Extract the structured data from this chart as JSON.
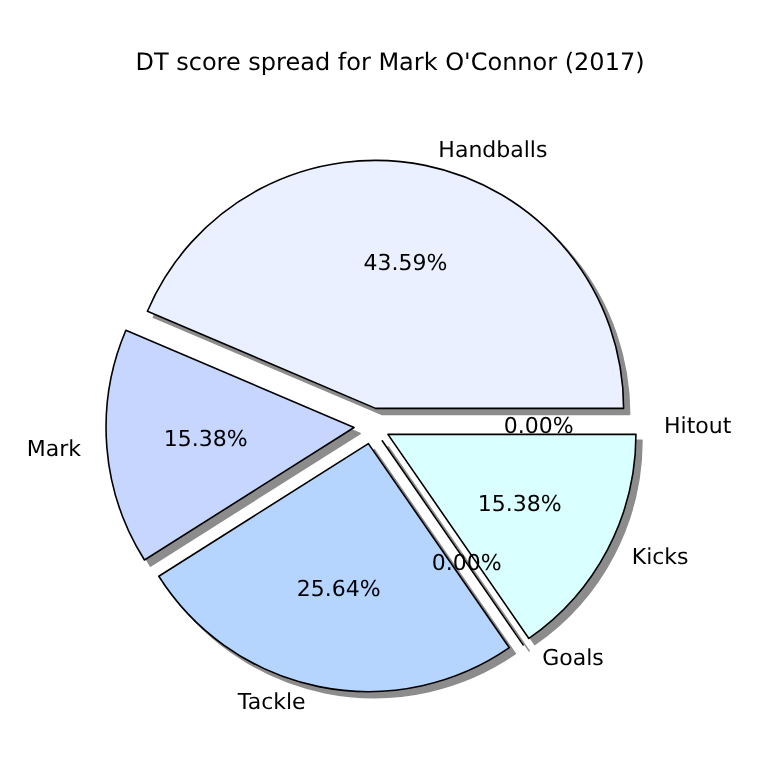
{
  "chart_data": {
    "type": "pie",
    "title": "DT score spread for Mark O'Connor (2017)",
    "categories": [
      "Handballs",
      "Mark",
      "Tackle",
      "Goals",
      "Kicks",
      "Hitout"
    ],
    "values": [
      43.59,
      15.38,
      25.64,
      0.0,
      15.38,
      0.0
    ],
    "colors": [
      "#eaf0ff",
      "#c6d6ff",
      "#b5d5ff",
      "#c0e8ff",
      "#d9ffff",
      "#e6ffff"
    ],
    "value_labels": [
      "43.59%",
      "15.38%",
      "25.64%",
      "0.00%",
      "15.38%",
      "0.00%"
    ]
  }
}
